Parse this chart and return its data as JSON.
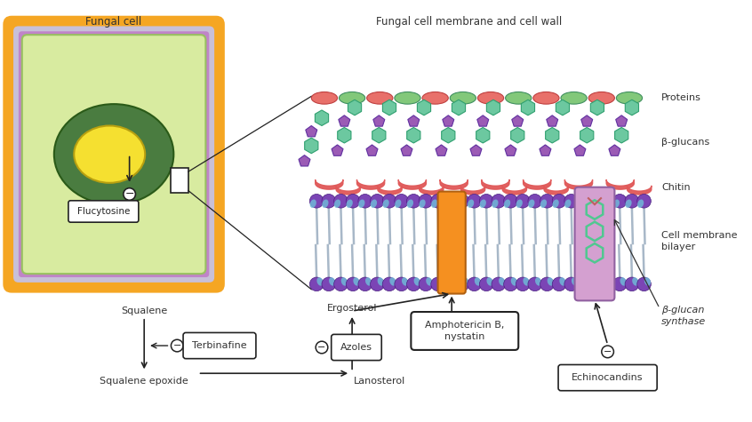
{
  "bg_color": "#ffffff",
  "title_left": "Fungal cell",
  "title_right": "Fungal cell membrane and cell wall",
  "labels": {
    "proteins": "Proteins",
    "beta_glucans": "β-glucans",
    "chitin": "Chitin",
    "cell_membrane": "Cell membrane\nbilayer",
    "flucytosine": "Flucytosine",
    "squalene": "Squalene",
    "terbinafine": "Terbinafine",
    "squalene_epoxide": "Squalene epoxide",
    "lanosterol": "Lanosterol",
    "ergosterol": "Ergosterol",
    "amphotericin": "Amphotericin B,\nnystatin",
    "azoles": "Azoles",
    "beta_glucan_synthase": "β-glucan\nsynthase",
    "echinocandins": "Echinocandins"
  },
  "colors": {
    "orange_border": "#F5A623",
    "purple_border": "#C084C8",
    "green_cell": "#D8EBA0",
    "dark_green": "#4A7C40",
    "yellow_nucleus": "#F5E030",
    "protein_red": "#E8706A",
    "protein_green": "#82C87A",
    "beta_glucan_teal": "#6CC8A0",
    "beta_glucan_purple": "#9B5BB5",
    "chitin_red": "#E05858",
    "membrane_purple": "#7B45B5",
    "membrane_teal": "#70B8D8",
    "membrane_gray": "#A8B8C8",
    "ergosterol_orange": "#F59020",
    "glucan_synthase_pink": "#D4A0D0",
    "glucan_synthase_teal": "#50C890",
    "arrow_color": "#333333"
  }
}
